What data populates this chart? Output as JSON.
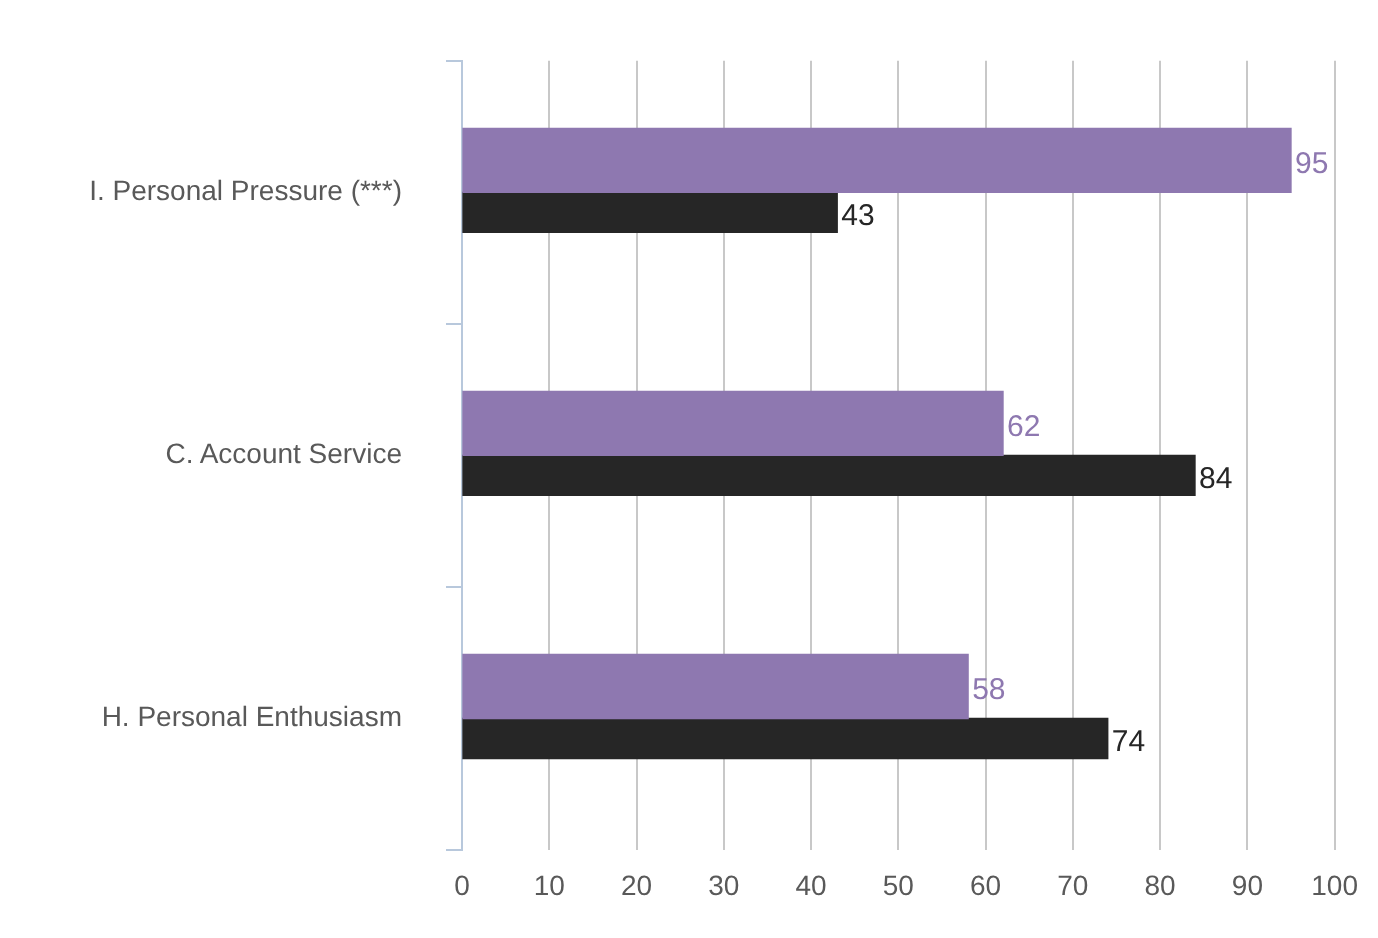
{
  "chart_data": {
    "type": "bar",
    "orientation": "horizontal",
    "categories": [
      "I. Personal Pressure (***)",
      "C. Account Service",
      "H. Personal Enthusiasm"
    ],
    "series": [
      {
        "color": "#8e78b0",
        "values": [
          95,
          62,
          58
        ]
      },
      {
        "color": "#262626",
        "values": [
          43,
          84,
          74
        ]
      }
    ],
    "xlim": [
      0,
      100
    ],
    "xticks": [
      0,
      10,
      20,
      30,
      40,
      50,
      60,
      70,
      80,
      90,
      100
    ],
    "grid": "x",
    "data_labels": true
  }
}
